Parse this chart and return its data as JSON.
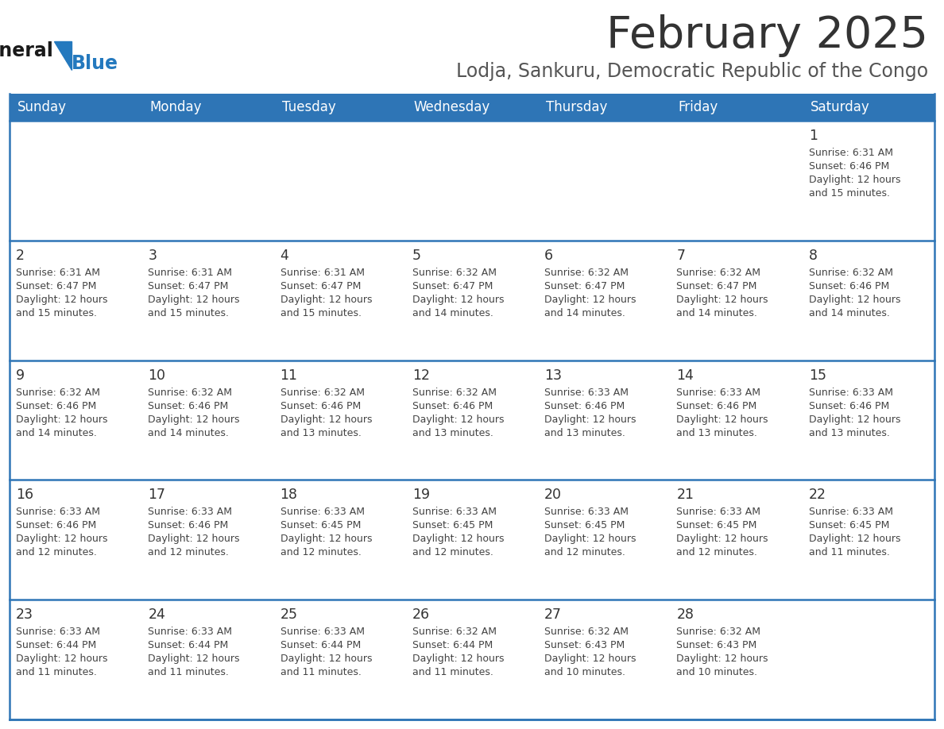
{
  "title": "February 2025",
  "subtitle": "Lodja, Sankuru, Democratic Republic of the Congo",
  "header_bg": "#2E75B6",
  "header_text_color": "#FFFFFF",
  "day_names": [
    "Sunday",
    "Monday",
    "Tuesday",
    "Wednesday",
    "Thursday",
    "Friday",
    "Saturday"
  ],
  "row_separator_color": "#2E75B6",
  "title_color": "#333333",
  "subtitle_color": "#555555",
  "day_number_color": "#333333",
  "cell_text_color": "#444444",
  "logo_black": "#1a1a1a",
  "logo_blue": "#2479BE",
  "triangle_color": "#2479BE",
  "calendar": [
    [
      null,
      null,
      null,
      null,
      null,
      null,
      {
        "day": 1,
        "sunrise": "6:31 AM",
        "sunset": "6:46 PM",
        "daylight": "12 hours",
        "daylight2": "and 15 minutes."
      }
    ],
    [
      {
        "day": 2,
        "sunrise": "6:31 AM",
        "sunset": "6:47 PM",
        "daylight": "12 hours",
        "daylight2": "and 15 minutes."
      },
      {
        "day": 3,
        "sunrise": "6:31 AM",
        "sunset": "6:47 PM",
        "daylight": "12 hours",
        "daylight2": "and 15 minutes."
      },
      {
        "day": 4,
        "sunrise": "6:31 AM",
        "sunset": "6:47 PM",
        "daylight": "12 hours",
        "daylight2": "and 15 minutes."
      },
      {
        "day": 5,
        "sunrise": "6:32 AM",
        "sunset": "6:47 PM",
        "daylight": "12 hours",
        "daylight2": "and 14 minutes."
      },
      {
        "day": 6,
        "sunrise": "6:32 AM",
        "sunset": "6:47 PM",
        "daylight": "12 hours",
        "daylight2": "and 14 minutes."
      },
      {
        "day": 7,
        "sunrise": "6:32 AM",
        "sunset": "6:47 PM",
        "daylight": "12 hours",
        "daylight2": "and 14 minutes."
      },
      {
        "day": 8,
        "sunrise": "6:32 AM",
        "sunset": "6:46 PM",
        "daylight": "12 hours",
        "daylight2": "and 14 minutes."
      }
    ],
    [
      {
        "day": 9,
        "sunrise": "6:32 AM",
        "sunset": "6:46 PM",
        "daylight": "12 hours",
        "daylight2": "and 14 minutes."
      },
      {
        "day": 10,
        "sunrise": "6:32 AM",
        "sunset": "6:46 PM",
        "daylight": "12 hours",
        "daylight2": "and 14 minutes."
      },
      {
        "day": 11,
        "sunrise": "6:32 AM",
        "sunset": "6:46 PM",
        "daylight": "12 hours",
        "daylight2": "and 13 minutes."
      },
      {
        "day": 12,
        "sunrise": "6:32 AM",
        "sunset": "6:46 PM",
        "daylight": "12 hours",
        "daylight2": "and 13 minutes."
      },
      {
        "day": 13,
        "sunrise": "6:33 AM",
        "sunset": "6:46 PM",
        "daylight": "12 hours",
        "daylight2": "and 13 minutes."
      },
      {
        "day": 14,
        "sunrise": "6:33 AM",
        "sunset": "6:46 PM",
        "daylight": "12 hours",
        "daylight2": "and 13 minutes."
      },
      {
        "day": 15,
        "sunrise": "6:33 AM",
        "sunset": "6:46 PM",
        "daylight": "12 hours",
        "daylight2": "and 13 minutes."
      }
    ],
    [
      {
        "day": 16,
        "sunrise": "6:33 AM",
        "sunset": "6:46 PM",
        "daylight": "12 hours",
        "daylight2": "and 12 minutes."
      },
      {
        "day": 17,
        "sunrise": "6:33 AM",
        "sunset": "6:46 PM",
        "daylight": "12 hours",
        "daylight2": "and 12 minutes."
      },
      {
        "day": 18,
        "sunrise": "6:33 AM",
        "sunset": "6:45 PM",
        "daylight": "12 hours",
        "daylight2": "and 12 minutes."
      },
      {
        "day": 19,
        "sunrise": "6:33 AM",
        "sunset": "6:45 PM",
        "daylight": "12 hours",
        "daylight2": "and 12 minutes."
      },
      {
        "day": 20,
        "sunrise": "6:33 AM",
        "sunset": "6:45 PM",
        "daylight": "12 hours",
        "daylight2": "and 12 minutes."
      },
      {
        "day": 21,
        "sunrise": "6:33 AM",
        "sunset": "6:45 PM",
        "daylight": "12 hours",
        "daylight2": "and 12 minutes."
      },
      {
        "day": 22,
        "sunrise": "6:33 AM",
        "sunset": "6:45 PM",
        "daylight": "12 hours",
        "daylight2": "and 11 minutes."
      }
    ],
    [
      {
        "day": 23,
        "sunrise": "6:33 AM",
        "sunset": "6:44 PM",
        "daylight": "12 hours",
        "daylight2": "and 11 minutes."
      },
      {
        "day": 24,
        "sunrise": "6:33 AM",
        "sunset": "6:44 PM",
        "daylight": "12 hours",
        "daylight2": "and 11 minutes."
      },
      {
        "day": 25,
        "sunrise": "6:33 AM",
        "sunset": "6:44 PM",
        "daylight": "12 hours",
        "daylight2": "and 11 minutes."
      },
      {
        "day": 26,
        "sunrise": "6:32 AM",
        "sunset": "6:44 PM",
        "daylight": "12 hours",
        "daylight2": "and 11 minutes."
      },
      {
        "day": 27,
        "sunrise": "6:32 AM",
        "sunset": "6:43 PM",
        "daylight": "12 hours",
        "daylight2": "and 10 minutes."
      },
      {
        "day": 28,
        "sunrise": "6:32 AM",
        "sunset": "6:43 PM",
        "daylight": "12 hours",
        "daylight2": "and 10 minutes."
      },
      null
    ]
  ]
}
